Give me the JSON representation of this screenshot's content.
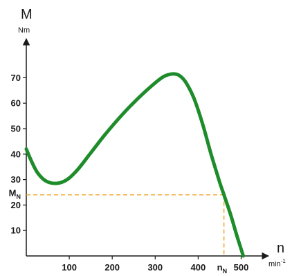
{
  "chart_data": {
    "type": "line",
    "y_axis": {
      "symbol": "M",
      "unit": "Nm",
      "range": [
        0,
        80
      ],
      "ticks": [
        10,
        20,
        30,
        40,
        50,
        60,
        70
      ]
    },
    "x_axis": {
      "symbol": "n",
      "unit": "min-1",
      "range": [
        0,
        540
      ],
      "ticks": [
        100,
        200,
        300,
        400,
        500
      ]
    },
    "grid": false,
    "series": [
      {
        "color": "#1e8c2a",
        "points": [
          [
            0,
            42
          ],
          [
            10,
            38
          ],
          [
            25,
            33
          ],
          [
            45,
            29.5
          ],
          [
            70,
            28.5
          ],
          [
            95,
            30
          ],
          [
            120,
            34
          ],
          [
            150,
            40.5
          ],
          [
            180,
            47
          ],
          [
            210,
            53
          ],
          [
            240,
            58.5
          ],
          [
            270,
            63.5
          ],
          [
            300,
            68
          ],
          [
            320,
            70.5
          ],
          [
            340,
            71.5
          ],
          [
            355,
            71
          ],
          [
            370,
            68.5
          ],
          [
            390,
            62
          ],
          [
            410,
            52
          ],
          [
            430,
            40
          ],
          [
            450,
            29
          ],
          [
            460,
            24
          ],
          [
            475,
            16.5
          ],
          [
            490,
            8
          ],
          [
            505,
            0
          ]
        ]
      }
    ],
    "rated_point": {
      "x_label": "n",
      "x_sub": "N",
      "y_label": "M",
      "y_sub": "N",
      "x": 460,
      "y": 24,
      "color": "#f0a01e"
    }
  }
}
